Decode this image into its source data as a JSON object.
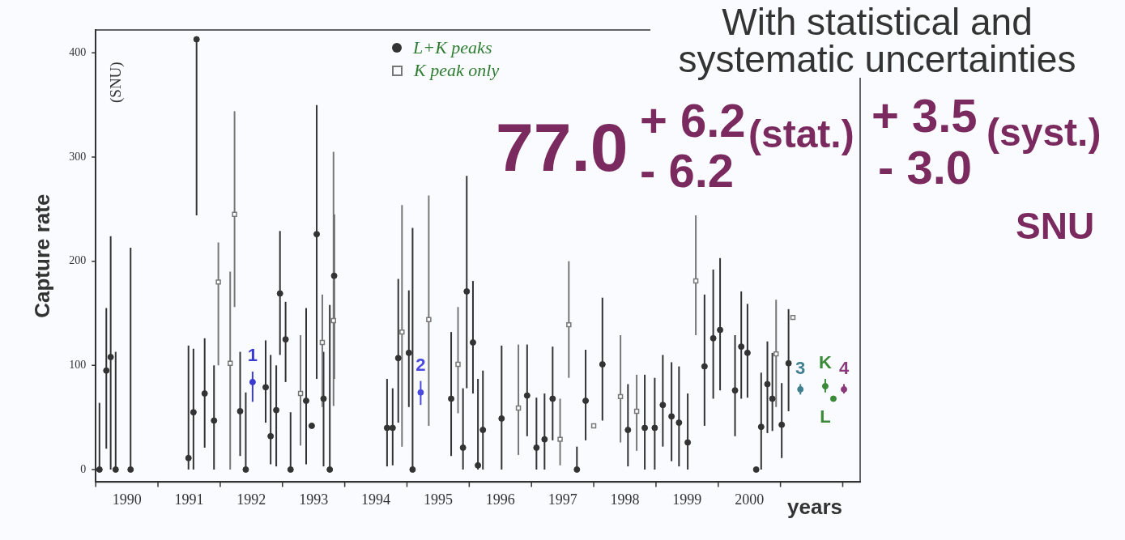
{
  "chart_data": {
    "type": "scatter",
    "title": "With statistical and systematic uncertainties",
    "xlabel": "years",
    "ylabel": "Capture rate",
    "xlim": [
      1990,
      2002.28
    ],
    "ylim": [
      -12,
      422
    ],
    "xticks": [
      {
        "value": 1990,
        "label": null
      },
      {
        "value": 1990.5,
        "label": "1990"
      },
      {
        "value": 1991,
        "label": null
      },
      {
        "value": 1991.5,
        "label": "1991"
      },
      {
        "value": 1992,
        "label": null
      },
      {
        "value": 1992.5,
        "label": "1992"
      },
      {
        "value": 1993,
        "label": null
      },
      {
        "value": 1993.5,
        "label": "1993"
      },
      {
        "value": 1994,
        "label": null
      },
      {
        "value": 1994.5,
        "label": "1994"
      },
      {
        "value": 1995,
        "label": null
      },
      {
        "value": 1995.5,
        "label": "1995"
      },
      {
        "value": 1996,
        "label": null
      },
      {
        "value": 1996.5,
        "label": "1996"
      },
      {
        "value": 1997,
        "label": null
      },
      {
        "value": 1997.5,
        "label": "1997"
      },
      {
        "value": 1998,
        "label": null
      },
      {
        "value": 1998.5,
        "label": "1998"
      },
      {
        "value": 1999,
        "label": null
      },
      {
        "value": 1999.5,
        "label": "1999"
      },
      {
        "value": 2000,
        "label": null
      },
      {
        "value": 2000.5,
        "label": "2000"
      },
      {
        "value": 2001,
        "label": null
      },
      {
        "value": 2002,
        "label": null
      }
    ],
    "yticks": [
      0,
      100,
      200,
      300,
      400
    ],
    "grid": false,
    "legend": "top",
    "series": [
      {
        "name": "L+K peaks",
        "color": "#333333",
        "marker": "circle",
        "x": [
          1990.06,
          1990.17,
          1990.24,
          1990.32,
          1990.56,
          1991.49,
          1991.57,
          1991.62,
          1991.75,
          1991.9,
          1992.32,
          1992.41,
          1992.73,
          1992.81,
          1992.9,
          1992.96,
          1993.05,
          1993.13,
          1993.38,
          1993.47,
          1993.55,
          1993.66,
          1993.76,
          1993.83,
          1994.68,
          1994.77,
          1994.86,
          1995.03,
          1995.09,
          1995.71,
          1995.9,
          1995.96,
          1996.06,
          1996.14,
          1996.22,
          1996.52,
          1996.93,
          1997.08,
          1997.21,
          1997.34,
          1997.73,
          1997.87,
          1998.14,
          1998.55,
          1998.82,
          1998.98,
          1999.11,
          1999.25,
          1999.37,
          1999.51,
          1999.78,
          1999.92,
          2000.03,
          2000.27,
          2000.37,
          2000.47,
          2000.61,
          2000.69,
          2000.79,
          2000.87,
          2001.02,
          2001.13
        ],
        "values": [
          0,
          95,
          108,
          0,
          0,
          11,
          55,
          413,
          73,
          47,
          56,
          0,
          79,
          32,
          57,
          169,
          125,
          0,
          66,
          42,
          226,
          68,
          0,
          186,
          40,
          40,
          107,
          112,
          0,
          68,
          21,
          171,
          122,
          4,
          38,
          49,
          71,
          21,
          29,
          68,
          0,
          66,
          101,
          38,
          40,
          40,
          62,
          51,
          45,
          26,
          99,
          126,
          134,
          76,
          118,
          112,
          0,
          41,
          82,
          68,
          43,
          102
        ],
        "errors": [
          [
            0,
            64
          ],
          [
            20,
            155
          ],
          [
            0,
            224
          ],
          [
            0,
            113
          ],
          [
            0,
            213
          ],
          [
            0,
            119
          ],
          [
            0,
            116
          ],
          [
            244,
            413
          ],
          [
            21,
            126
          ],
          [
            0,
            100
          ],
          [
            13,
            113
          ],
          [
            0,
            74
          ],
          [
            45,
            124
          ],
          [
            5,
            110
          ],
          [
            3,
            100
          ],
          [
            110,
            229
          ],
          [
            84,
            161
          ],
          [
            0,
            55
          ],
          [
            5,
            155
          ],
          null,
          [
            87,
            350
          ],
          [
            3,
            113
          ],
          [
            0,
            158
          ],
          [
            87,
            245
          ],
          [
            3,
            87
          ],
          [
            4,
            78
          ],
          [
            45,
            183
          ],
          [
            60,
            172
          ],
          [
            0,
            232
          ],
          [
            13,
            132
          ],
          [
            0,
            78
          ],
          [
            78,
            282
          ],
          [
            73,
            181
          ],
          [
            0,
            87
          ],
          [
            0,
            95
          ],
          [
            0,
            119
          ],
          [
            32,
            120
          ],
          [
            0,
            69
          ],
          [
            0,
            73
          ],
          [
            28,
            118
          ],
          [
            0,
            22
          ],
          [
            28,
            115
          ],
          [
            47,
            165
          ],
          [
            3,
            82
          ],
          [
            0,
            91
          ],
          [
            0,
            88
          ],
          [
            22,
            110
          ],
          [
            8,
            103
          ],
          [
            3,
            99
          ],
          [
            0,
            73
          ],
          [
            42,
            168
          ],
          [
            68,
            192
          ],
          [
            76,
            203
          ],
          [
            32,
            129
          ],
          [
            68,
            171
          ],
          [
            69,
            159
          ],
          null,
          [
            0,
            93
          ],
          [
            35,
            123
          ],
          [
            37,
            112
          ],
          [
            11,
            83
          ],
          [
            56,
            154
          ]
        ]
      },
      {
        "name": "K peak only",
        "color": "#777777",
        "marker": "square",
        "x": [
          1991.97,
          1992.16,
          1992.23,
          1993.29,
          1993.64,
          1993.82,
          1994.92,
          1995.35,
          1995.82,
          1996.79,
          1997.46,
          1997.6,
          1998.0,
          1998.43,
          1998.69,
          1999.64,
          2000.93,
          2001.2
        ],
        "values": [
          180,
          102,
          245,
          73,
          122,
          143,
          132,
          144,
          101,
          59,
          29,
          139,
          42,
          70,
          56,
          181,
          111,
          146
        ],
        "errors": [
          [
            100,
            218
          ],
          [
            0,
            190
          ],
          [
            156,
            344
          ],
          [
            23,
            129
          ],
          [
            60,
            168
          ],
          [
            61,
            305
          ],
          [
            22,
            254
          ],
          [
            42,
            263
          ],
          [
            54,
            156
          ],
          [
            14,
            120
          ],
          [
            4,
            68
          ],
          [
            88,
            200
          ],
          null,
          [
            26,
            129
          ],
          [
            18,
            91
          ],
          [
            129,
            244
          ],
          [
            60,
            163
          ],
          null
        ]
      },
      {
        "name": "1",
        "color": "#3a3ad0",
        "marker": "circle",
        "x": [
          1992.52
        ],
        "values": [
          84
        ],
        "errors": [
          [
            65,
            94
          ]
        ]
      },
      {
        "name": "2",
        "color": "#4a4ae0",
        "marker": "circle",
        "x": [
          1995.22
        ],
        "values": [
          74
        ],
        "errors": [
          [
            62,
            85
          ]
        ]
      },
      {
        "name": "3",
        "color": "#3f7f8f",
        "marker": "circle",
        "x": [
          2001.32
        ],
        "values": [
          77
        ],
        "errors": [
          [
            72,
            82
          ]
        ]
      },
      {
        "name": "K",
        "color": "#3a8a3a",
        "marker": "circle",
        "x": [
          2001.72
        ],
        "values": [
          80
        ],
        "errors": [
          [
            74,
            87
          ]
        ]
      },
      {
        "name": "L",
        "color": "#3a8a3a",
        "marker": "circle",
        "x": [
          2001.85
        ],
        "values": [
          68
        ]
      },
      {
        "name": "4",
        "color": "#8a3a7a",
        "marker": "circle",
        "x": [
          2002.02
        ],
        "values": [
          77
        ],
        "errors": [
          [
            73,
            82
          ]
        ]
      }
    ],
    "annotations": [
      "77.0",
      "+ 6.2",
      "- 6.2",
      "(stat.)",
      "+ 3.5",
      "- 3.0",
      "(syst.)",
      "SNU",
      "(SNU)"
    ]
  }
}
